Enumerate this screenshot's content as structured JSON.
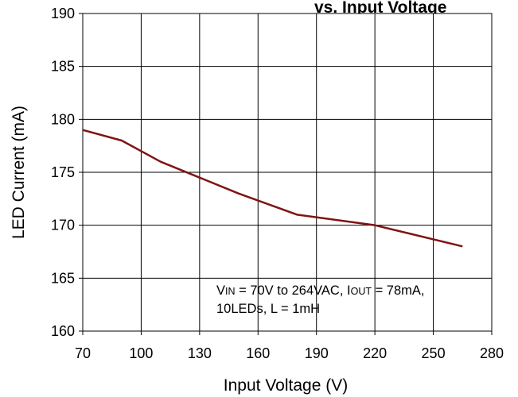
{
  "chart_data": {
    "type": "line",
    "title": "vs. Input Voltage",
    "xlabel": "Input Voltage (V)",
    "ylabel": "LED Current (mA)",
    "xlim": [
      70,
      280
    ],
    "ylim": [
      160,
      190
    ],
    "xticks": [
      70,
      100,
      130,
      160,
      190,
      220,
      250,
      280
    ],
    "yticks": [
      160,
      165,
      170,
      175,
      180,
      185,
      190
    ],
    "x_tick_labels": [
      "70",
      "100",
      "130",
      "160",
      "190",
      "220",
      "250",
      "280"
    ],
    "y_tick_labels": [
      "160",
      "165",
      "170",
      "175",
      "180",
      "185",
      "190"
    ],
    "grid": true,
    "series": [
      {
        "color": "#7f1416",
        "x": [
          70,
          90,
          110,
          130,
          150,
          180,
          220,
          265
        ],
        "y": [
          179,
          178,
          176,
          174.5,
          173,
          171,
          170,
          168
        ]
      }
    ],
    "annotation": {
      "vin_main": "V",
      "vin_sub": "IN",
      "vin_rest": " = 70V to 264VAC, I",
      "iout_sub": "OUT",
      "iout_rest": " = 78mA,",
      "line2": "10LEDs, L = 1mH"
    }
  }
}
